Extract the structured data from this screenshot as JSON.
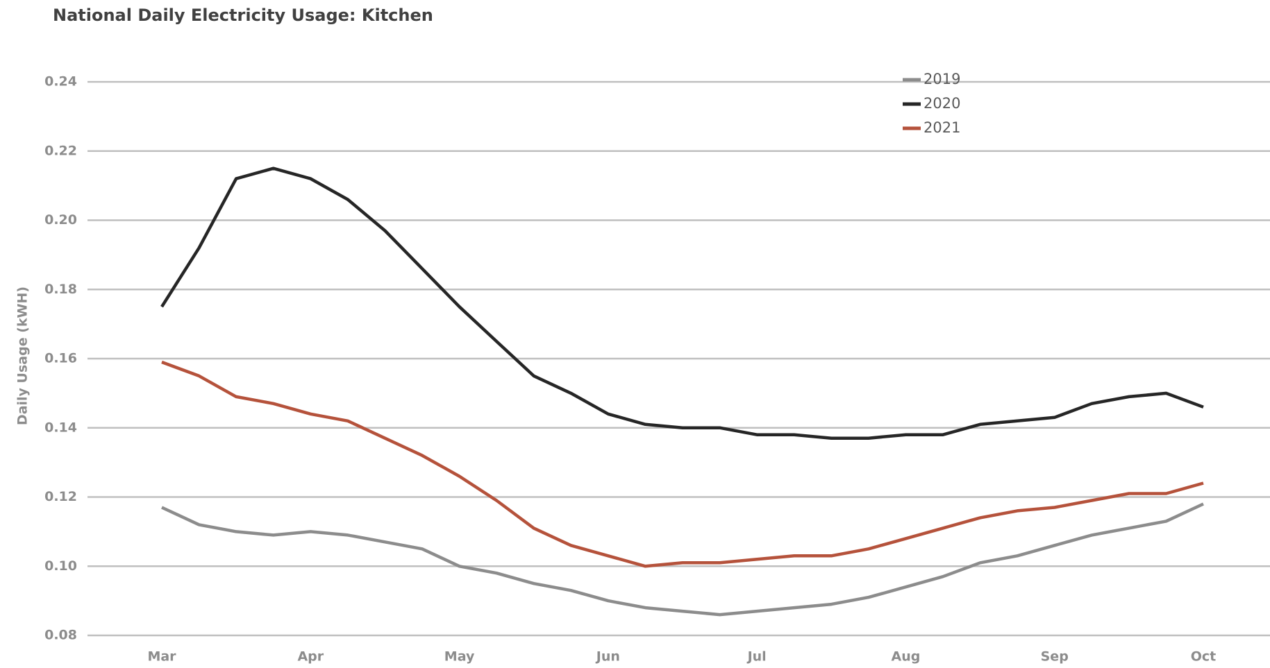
{
  "chart_data": {
    "type": "line",
    "title": "National Daily Electricity Usage: Kitchen",
    "y_label": "Daily Usage (kWH)",
    "categories": [
      "Mar",
      null,
      null,
      null,
      "Apr",
      null,
      null,
      null,
      "May",
      null,
      null,
      null,
      "Jun",
      null,
      null,
      null,
      "Jul",
      null,
      null,
      null,
      "Aug",
      null,
      null,
      null,
      "Sep",
      null,
      null,
      null,
      "Oct"
    ],
    "series": [
      {
        "name": "2019",
        "color": "#8c8c8c",
        "values": [
          0.117,
          0.112,
          0.11,
          0.109,
          0.11,
          0.109,
          0.107,
          0.105,
          0.1,
          0.098,
          0.095,
          0.093,
          0.09,
          0.088,
          0.087,
          0.086,
          0.087,
          0.088,
          0.089,
          0.091,
          0.094,
          0.097,
          0.101,
          0.103,
          0.106,
          0.109,
          0.111,
          0.113,
          0.118
        ]
      },
      {
        "name": "2020",
        "color": "#262626",
        "values": [
          0.175,
          0.192,
          0.212,
          0.215,
          0.212,
          0.206,
          0.197,
          0.186,
          0.175,
          0.165,
          0.155,
          0.15,
          0.144,
          0.141,
          0.14,
          0.14,
          0.138,
          0.138,
          0.137,
          0.137,
          0.138,
          0.138,
          0.141,
          0.142,
          0.143,
          0.147,
          0.149,
          0.15,
          0.146
        ]
      },
      {
        "name": "2021",
        "color": "#b5523b",
        "values": [
          0.159,
          0.155,
          0.149,
          0.147,
          0.144,
          0.142,
          0.137,
          0.132,
          0.126,
          0.119,
          0.111,
          0.106,
          0.103,
          0.1,
          0.101,
          0.101,
          0.102,
          0.103,
          0.103,
          0.105,
          0.108,
          0.111,
          0.114,
          0.116,
          0.117,
          0.119,
          0.121,
          0.121,
          0.124
        ]
      }
    ],
    "ylim": [
      0.08,
      0.24
    ],
    "yticks": [
      {
        "value": 0.08,
        "label": "0.08"
      },
      {
        "value": 0.1,
        "label": "0.10"
      },
      {
        "value": 0.12,
        "label": "0.12"
      },
      {
        "value": 0.14,
        "label": "0.14"
      },
      {
        "value": 0.16,
        "label": "0.16"
      },
      {
        "value": 0.18,
        "label": "0.18"
      },
      {
        "value": 0.2,
        "label": "0.20"
      },
      {
        "value": 0.22,
        "label": "0.22"
      },
      {
        "value": 0.24,
        "label": "0.24"
      }
    ],
    "grid": true,
    "legend": "top-right"
  }
}
